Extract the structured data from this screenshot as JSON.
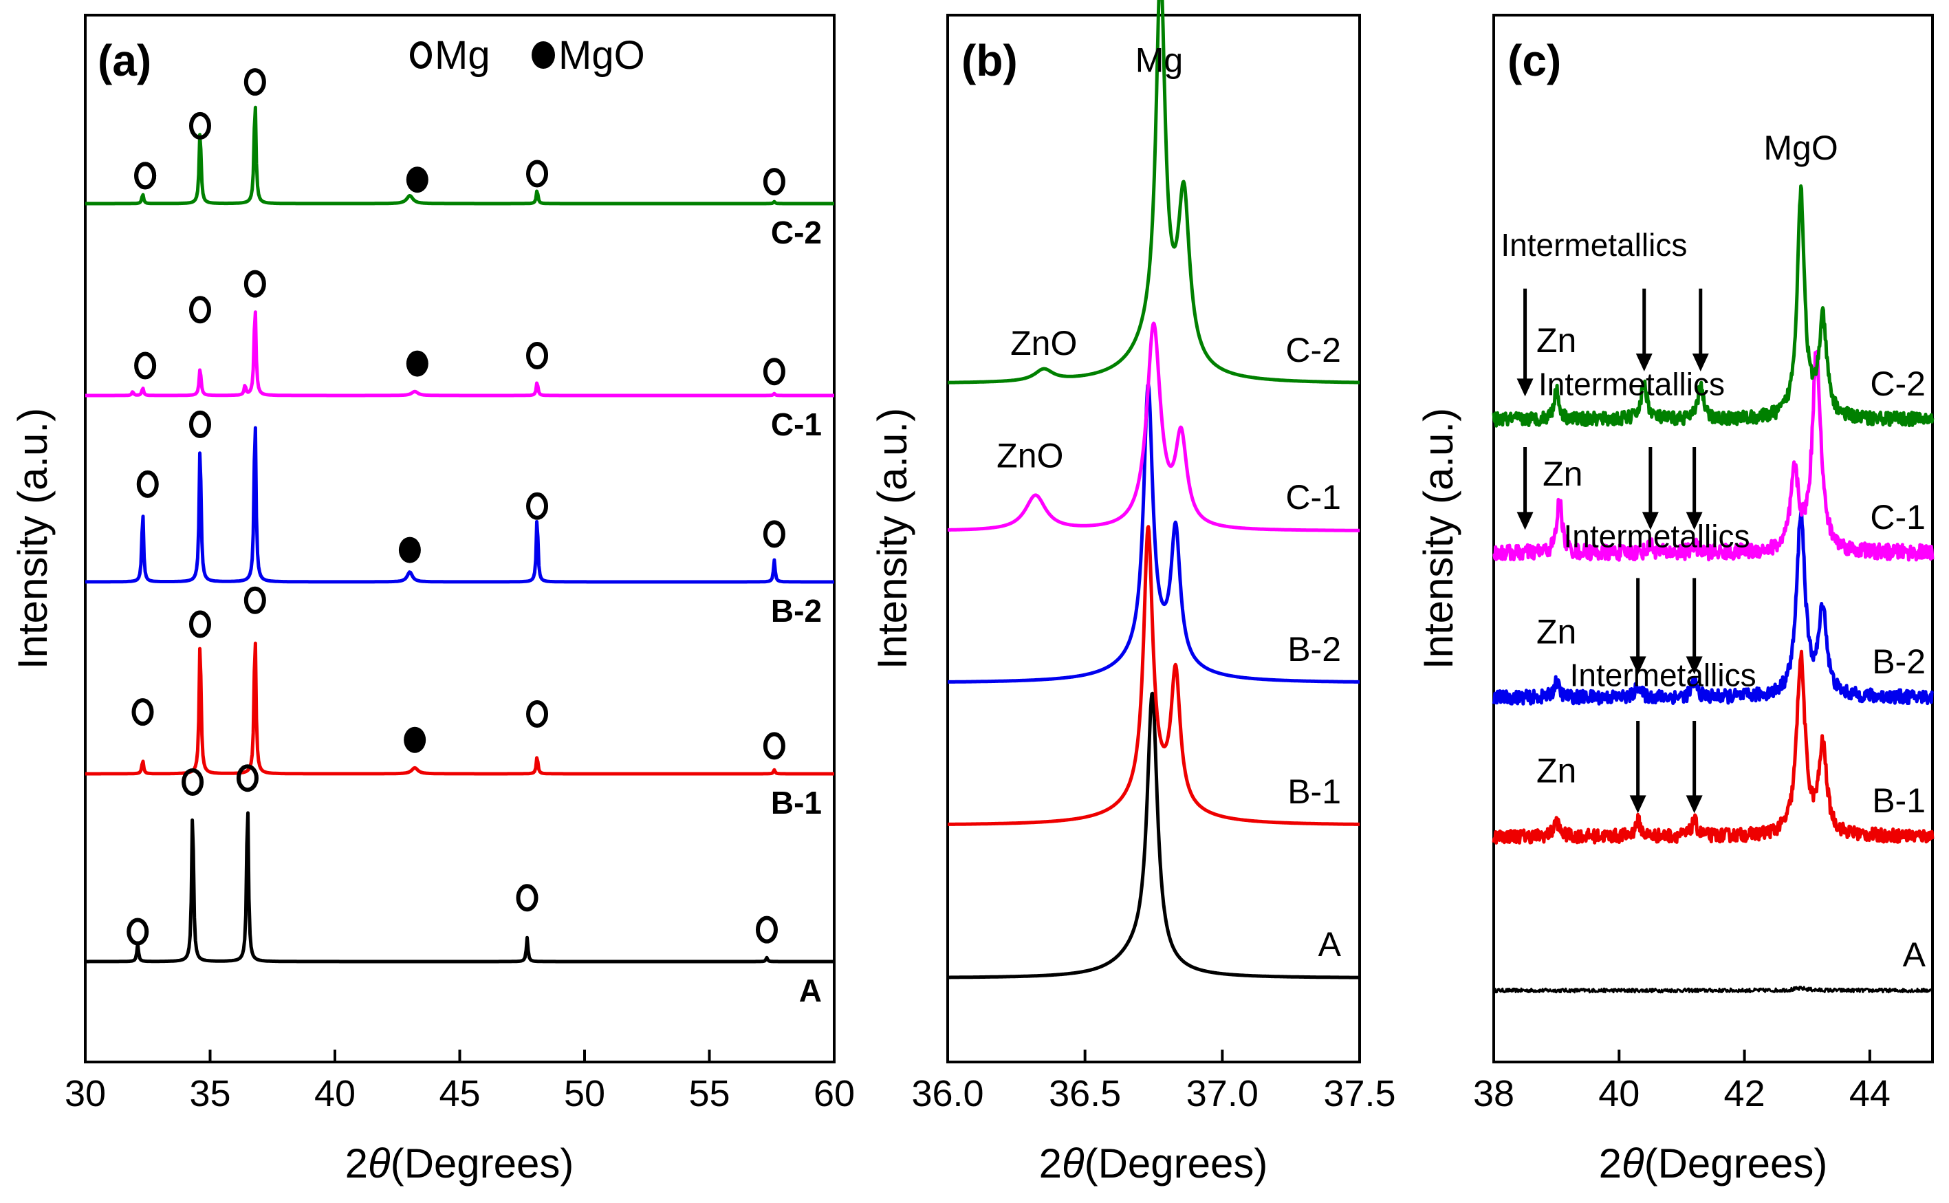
{
  "figure": {
    "background": "#ffffff"
  },
  "colors": {
    "A": "#000000",
    "B-1": "#ee0000",
    "B-2": "#0000ee",
    "C-1": "#ff00ff",
    "C-2": "#008000"
  },
  "legend": {
    "mg": "Mg",
    "mgo": "MgO"
  },
  "axis_common": {
    "ylabel": "Intensity (a.u.)",
    "xlabel_prefix": "2",
    "theta": "θ",
    "xlabel_suffix": "(Degrees)"
  },
  "chart_data": [
    {
      "id": "a",
      "title": "(a)",
      "type": "line",
      "xlabel": "2θ (Degrees)",
      "ylabel": "Intensity (a.u.)",
      "xlim": [
        30,
        60
      ],
      "xticks": [
        30,
        35,
        40,
        45,
        50,
        55,
        60
      ],
      "tick_labels": [
        "30",
        "35",
        "40",
        "45",
        "50",
        "55",
        "60"
      ],
      "legend": [
        "Mg (open circle)",
        "MgO (filled circle)"
      ],
      "series": [
        {
          "name": "A",
          "label": "A",
          "baseline": 0.0,
          "peaks": [
            [
              32.1,
              0.09,
              0.08
            ],
            [
              34.3,
              0.78,
              0.09
            ],
            [
              36.5,
              0.82,
              0.09
            ],
            [
              47.7,
              0.12,
              0.08
            ],
            [
              57.3,
              0.02,
              0.08
            ]
          ],
          "markers": [
            {
              "x": 32.1,
              "y": 0.15,
              "kind": "Mg"
            },
            {
              "x": 34.3,
              "y": 0.9,
              "kind": "Mg"
            },
            {
              "x": 36.5,
              "y": 0.92,
              "kind": "Mg"
            },
            {
              "x": 47.7,
              "y": 0.32,
              "kind": "Mg"
            },
            {
              "x": 57.3,
              "y": 0.16,
              "kind": "Mg"
            }
          ]
        },
        {
          "name": "B-1",
          "label": "B-1",
          "baseline": 1.0,
          "peaks": [
            [
              32.3,
              0.07,
              0.08
            ],
            [
              34.6,
              0.69,
              0.09
            ],
            [
              36.8,
              0.72,
              0.09
            ],
            [
              43.2,
              0.03,
              0.3
            ],
            [
              48.1,
              0.09,
              0.08
            ],
            [
              57.6,
              0.02,
              0.08
            ]
          ],
          "markers": [
            {
              "x": 32.3,
              "y": 0.31,
              "kind": "Mg"
            },
            {
              "x": 34.6,
              "y": 0.75,
              "kind": "Mg"
            },
            {
              "x": 36.8,
              "y": 0.87,
              "kind": "Mg"
            },
            {
              "x": 43.2,
              "y": 0.17,
              "kind": "MgO"
            },
            {
              "x": 48.1,
              "y": 0.3,
              "kind": "Mg"
            },
            {
              "x": 57.6,
              "y": 0.14,
              "kind": "Mg"
            }
          ]
        },
        {
          "name": "B-2",
          "label": "B-2",
          "baseline": 2.0,
          "peaks": [
            [
              32.3,
              0.37,
              0.08
            ],
            [
              34.6,
              0.71,
              0.09
            ],
            [
              36.8,
              0.85,
              0.09
            ],
            [
              43.0,
              0.05,
              0.25
            ],
            [
              48.1,
              0.34,
              0.08
            ],
            [
              57.6,
              0.11,
              0.08
            ]
          ],
          "markers": [
            {
              "x": 32.5,
              "y": 0.49,
              "kind": "Mg"
            },
            {
              "x": 34.6,
              "y": 0.79,
              "kind": "Mg"
            },
            {
              "x": 43.0,
              "y": 0.16,
              "kind": "MgO"
            },
            {
              "x": 48.1,
              "y": 0.38,
              "kind": "Mg"
            },
            {
              "x": 57.6,
              "y": 0.24,
              "kind": "Mg"
            }
          ]
        },
        {
          "name": "C-1",
          "label": "C-1",
          "baseline": 3.0,
          "peaks": [
            [
              31.9,
              0.02,
              0.08
            ],
            [
              32.3,
              0.04,
              0.08
            ],
            [
              34.6,
              0.14,
              0.09
            ],
            [
              36.4,
              0.05,
              0.08
            ],
            [
              36.8,
              0.46,
              0.09
            ],
            [
              43.2,
              0.02,
              0.3
            ],
            [
              48.1,
              0.07,
              0.08
            ],
            [
              57.6,
              0.01,
              0.08
            ]
          ],
          "markers": [
            {
              "x": 32.4,
              "y": 0.15,
              "kind": "Mg"
            },
            {
              "x": 34.6,
              "y": 0.43,
              "kind": "Mg"
            },
            {
              "x": 36.8,
              "y": 0.56,
              "kind": "Mg"
            },
            {
              "x": 43.3,
              "y": 0.16,
              "kind": "MgO"
            },
            {
              "x": 48.1,
              "y": 0.2,
              "kind": "Mg"
            },
            {
              "x": 57.6,
              "y": 0.12,
              "kind": "Mg"
            }
          ]
        },
        {
          "name": "C-2",
          "label": "C-2",
          "baseline": 4.0,
          "peaks": [
            [
              32.3,
              0.05,
              0.08
            ],
            [
              34.6,
              0.38,
              0.09
            ],
            [
              36.8,
              0.53,
              0.09
            ],
            [
              43.0,
              0.04,
              0.3
            ],
            [
              48.1,
              0.07,
              0.08
            ],
            [
              57.6,
              0.01,
              0.08
            ]
          ],
          "markers": [
            {
              "x": 32.4,
              "y": 0.14,
              "kind": "Mg"
            },
            {
              "x": 32.4,
              "y": 0.14,
              "kind": "Mg"
            },
            {
              "x": 34.6,
              "y": 0.39,
              "kind": "Mg"
            },
            {
              "x": 36.8,
              "y": 0.61,
              "kind": "Mg"
            },
            {
              "x": 43.3,
              "y": 0.12,
              "kind": "MgO"
            },
            {
              "x": 48.1,
              "y": 0.15,
              "kind": "Mg"
            },
            {
              "x": 57.6,
              "y": 0.11,
              "kind": "Mg"
            }
          ]
        }
      ]
    },
    {
      "id": "b",
      "title": "(b)",
      "type": "line",
      "xlabel": "2θ (Degrees)",
      "ylabel": "Intensity (a.u.)",
      "xlim": [
        36.0,
        37.5
      ],
      "xticks": [
        36.0,
        36.5,
        37.0,
        37.5
      ],
      "tick_labels": [
        "36.0",
        "36.5",
        "37.0",
        "37.5"
      ],
      "annotations": [
        {
          "text": "Mg",
          "x": 36.77,
          "series_index": 4,
          "y": 1.08
        },
        {
          "text": "ZnO",
          "x": 36.35,
          "series_index": 4,
          "y": 0.1
        },
        {
          "text": "ZnO",
          "x": 36.3,
          "series_index": 3,
          "y": 0.22
        }
      ],
      "series": [
        {
          "name": "A",
          "label": "A",
          "baseline": 0.0,
          "peaks": [
            [
              36.745,
              0.92,
              0.045
            ],
            [
              36.7,
              0.08,
              0.2
            ]
          ]
        },
        {
          "name": "B-1",
          "label": "B-1",
          "baseline": 1.0,
          "peaks": [
            [
              36.73,
              0.92,
              0.04
            ],
            [
              36.83,
              0.45,
              0.04
            ],
            [
              36.75,
              0.1,
              0.25
            ]
          ]
        },
        {
          "name": "B-2",
          "label": "B-2",
          "baseline": 2.0,
          "peaks": [
            [
              36.73,
              0.92,
              0.04
            ],
            [
              36.83,
              0.45,
              0.04
            ],
            [
              36.75,
              0.1,
              0.25
            ]
          ]
        },
        {
          "name": "C-1",
          "label": "C-1",
          "baseline": 3.0,
          "peaks": [
            [
              36.75,
              0.7,
              0.06
            ],
            [
              36.85,
              0.3,
              0.05
            ],
            [
              36.32,
              0.12,
              0.09
            ]
          ]
        },
        {
          "name": "C-2",
          "label": "C-2",
          "baseline": 4.0,
          "peaks": [
            [
              36.775,
              1.25,
              0.04
            ],
            [
              36.86,
              0.55,
              0.05
            ],
            [
              36.77,
              0.15,
              0.2
            ],
            [
              36.35,
              0.04,
              0.08
            ]
          ]
        }
      ]
    },
    {
      "id": "c",
      "title": "(c)",
      "type": "line",
      "xlabel": "2θ (Degrees)",
      "ylabel": "Intensity (a.u.)",
      "xlim": [
        38,
        45
      ],
      "xticks": [
        38,
        40,
        42,
        44
      ],
      "tick_labels": [
        "38",
        "40",
        "42",
        "44"
      ],
      "annotations": [
        {
          "text": "MgO",
          "x": 42.9,
          "series_index": 4,
          "y": 1.35,
          "size": "normal"
        },
        {
          "text": "Intermetallics",
          "x": 39.6,
          "series_index": 4,
          "y": 0.85,
          "size": "small"
        },
        {
          "text": "Zn",
          "x": 39.0,
          "series_index": 4,
          "y": 0.35,
          "size": "normal"
        },
        {
          "text": "Intermetallics",
          "x": 40.2,
          "series_index": 3,
          "y": 0.82,
          "size": "small"
        },
        {
          "text": "Zn",
          "x": 39.1,
          "series_index": 3,
          "y": 0.35,
          "size": "normal"
        },
        {
          "text": "Intermetallics",
          "x": 40.6,
          "series_index": 2,
          "y": 0.78,
          "size": "small"
        },
        {
          "text": "Zn",
          "x": 39.0,
          "series_index": 2,
          "y": 0.28,
          "size": "normal"
        },
        {
          "text": "Intermetallics",
          "x": 40.7,
          "series_index": 1,
          "y": 0.78,
          "size": "small"
        },
        {
          "text": "Zn",
          "x": 39.0,
          "series_index": 1,
          "y": 0.28,
          "size": "normal"
        }
      ],
      "arrows": [
        {
          "x": 38.5,
          "series_index": 4,
          "y_top": 0.68,
          "y_bot": 0.12
        },
        {
          "x": 40.4,
          "series_index": 4,
          "y_top": 0.68,
          "y_bot": 0.25
        },
        {
          "x": 41.3,
          "series_index": 4,
          "y_top": 0.68,
          "y_bot": 0.25
        },
        {
          "x": 38.5,
          "series_index": 3,
          "y_top": 0.55,
          "y_bot": 0.12
        },
        {
          "x": 40.5,
          "series_index": 3,
          "y_top": 0.55,
          "y_bot": 0.12
        },
        {
          "x": 41.2,
          "series_index": 3,
          "y_top": 0.55,
          "y_bot": 0.12
        },
        {
          "x": 40.3,
          "series_index": 2,
          "y_top": 0.62,
          "y_bot": 0.12
        },
        {
          "x": 41.2,
          "series_index": 2,
          "y_top": 0.62,
          "y_bot": 0.12
        },
        {
          "x": 40.3,
          "series_index": 1,
          "y_top": 0.6,
          "y_bot": 0.12
        },
        {
          "x": 41.2,
          "series_index": 1,
          "y_top": 0.6,
          "y_bot": 0.12
        }
      ],
      "series": [
        {
          "name": "A",
          "label": "A",
          "baseline": 0.0,
          "noise": 0.01,
          "peaks": [
            [
              42.9,
              0.01,
              0.3
            ]
          ]
        },
        {
          "name": "B-1",
          "label": "B-1",
          "baseline": 1.0,
          "noise": 0.035,
          "peaks": [
            [
              42.9,
              0.92,
              0.16
            ],
            [
              43.25,
              0.45,
              0.15
            ],
            [
              39.0,
              0.08,
              0.1
            ],
            [
              40.3,
              0.08,
              0.1
            ],
            [
              41.2,
              0.08,
              0.1
            ]
          ]
        },
        {
          "name": "B-2",
          "label": "B-2",
          "baseline": 2.0,
          "noise": 0.035,
          "peaks": [
            [
              42.9,
              0.95,
              0.16
            ],
            [
              43.25,
              0.45,
              0.15
            ],
            [
              39.0,
              0.08,
              0.1
            ],
            [
              40.3,
              0.06,
              0.1
            ],
            [
              41.2,
              0.08,
              0.1
            ]
          ]
        },
        {
          "name": "C-1",
          "label": "C-1",
          "baseline": 3.0,
          "noise": 0.04,
          "peaks": [
            [
              43.15,
              1.05,
              0.16
            ],
            [
              42.8,
              0.4,
              0.15
            ],
            [
              39.05,
              0.28,
              0.1
            ],
            [
              40.5,
              0.04,
              0.1
            ],
            [
              41.2,
              0.04,
              0.1
            ]
          ]
        },
        {
          "name": "C-2",
          "label": "C-2",
          "baseline": 4.0,
          "noise": 0.035,
          "peaks": [
            [
              42.9,
              1.18,
              0.14
            ],
            [
              43.25,
              0.5,
              0.15
            ],
            [
              39.0,
              0.15,
              0.1
            ],
            [
              40.4,
              0.18,
              0.12
            ],
            [
              41.3,
              0.18,
              0.1
            ]
          ]
        }
      ]
    }
  ]
}
